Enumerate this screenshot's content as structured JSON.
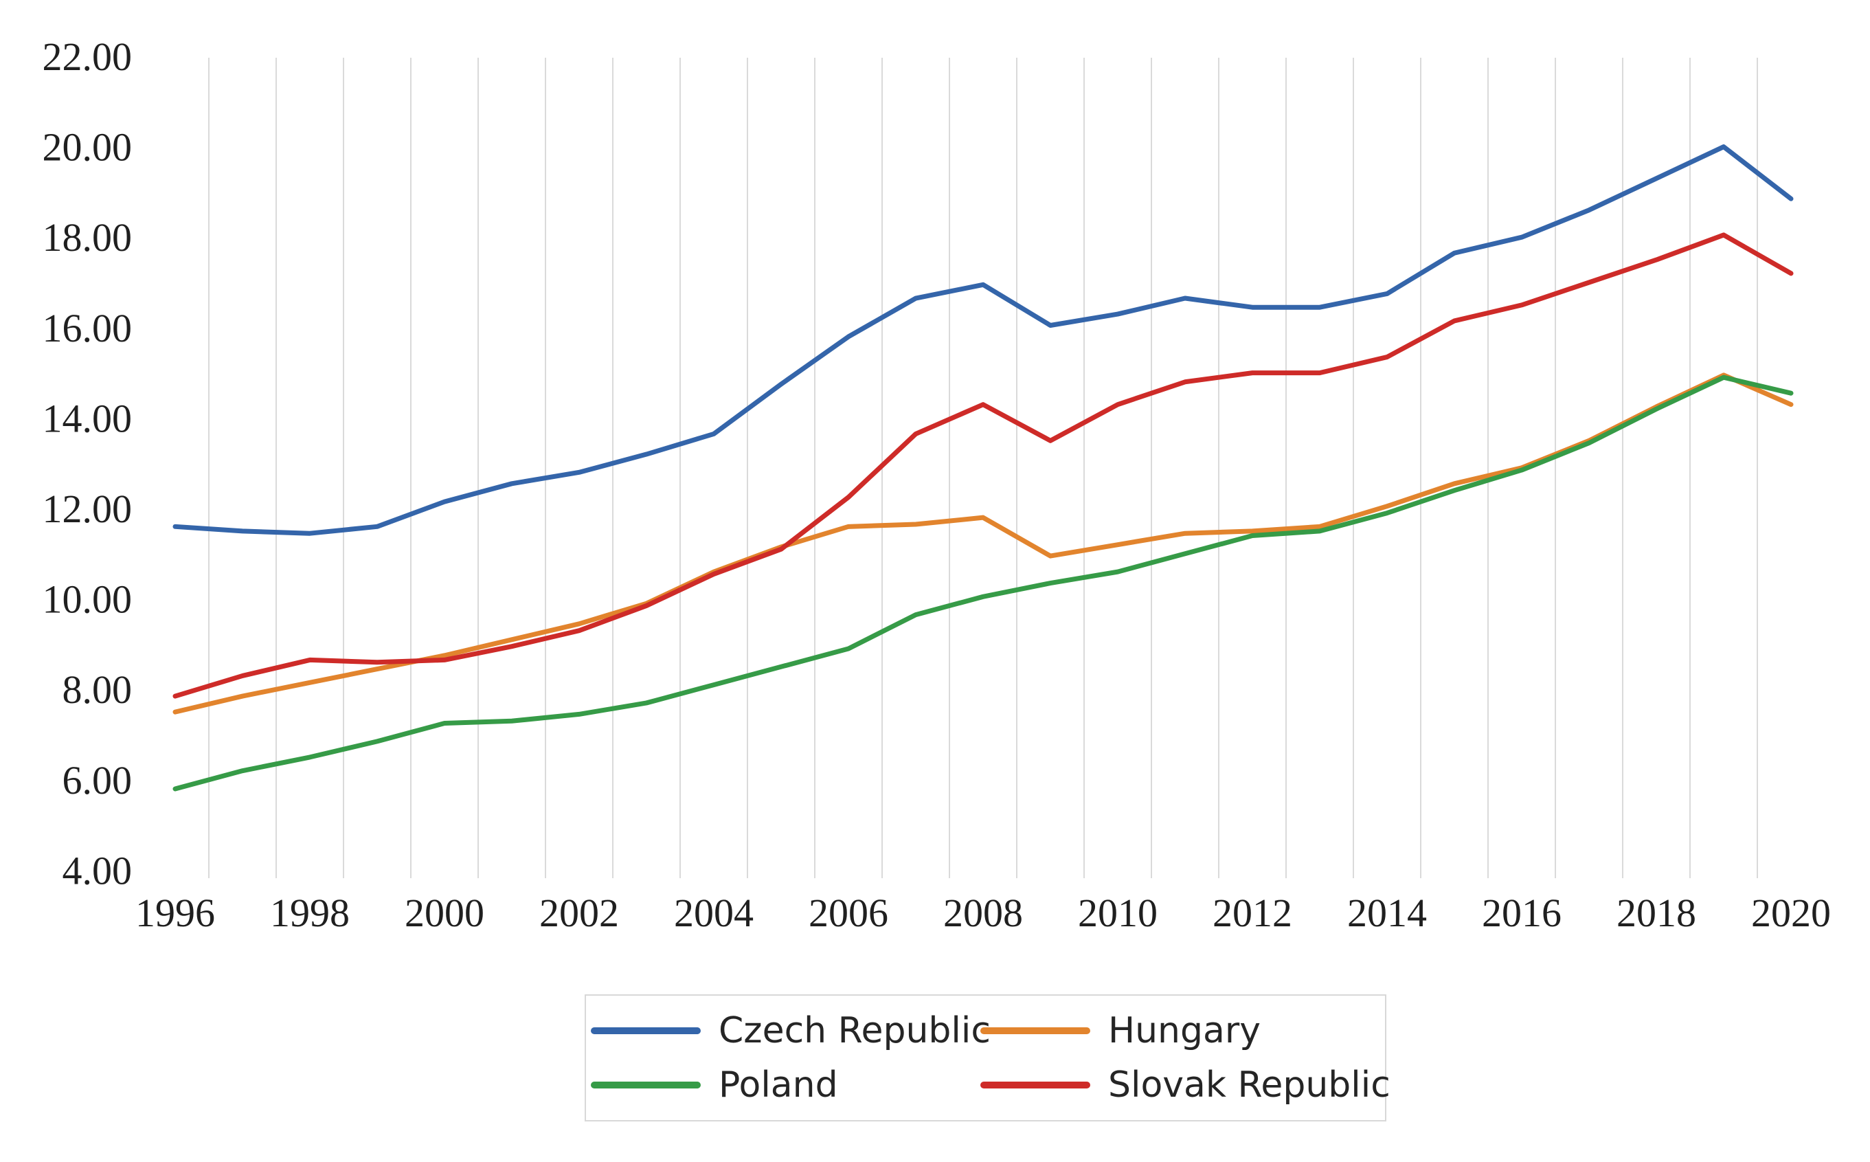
{
  "chart_data": {
    "type": "line",
    "title": "",
    "xlabel": "",
    "ylabel": "",
    "x": [
      1996,
      1997,
      1998,
      1999,
      2000,
      2001,
      2002,
      2003,
      2004,
      2005,
      2006,
      2007,
      2008,
      2009,
      2010,
      2011,
      2012,
      2013,
      2014,
      2015,
      2016,
      2017,
      2018,
      2019,
      2020
    ],
    "series": [
      {
        "name": "Czech Republic",
        "color": "#3465AA",
        "values": [
          11.6,
          11.5,
          11.45,
          11.6,
          12.15,
          12.55,
          12.8,
          13.2,
          13.65,
          14.75,
          15.8,
          16.65,
          16.95,
          16.05,
          16.3,
          16.65,
          16.45,
          16.45,
          16.75,
          17.65,
          18.0,
          18.6,
          19.3,
          20.0,
          18.85
        ]
      },
      {
        "name": "Hungary",
        "color": "#E2842D",
        "values": [
          7.5,
          7.85,
          8.15,
          8.45,
          8.75,
          9.1,
          9.45,
          9.9,
          10.6,
          11.15,
          11.6,
          11.65,
          11.8,
          10.95,
          11.2,
          11.45,
          11.5,
          11.6,
          12.05,
          12.55,
          12.9,
          13.5,
          14.25,
          14.95,
          14.3
        ]
      },
      {
        "name": "Poland",
        "color": "#369B47",
        "values": [
          5.8,
          6.2,
          6.5,
          6.85,
          7.25,
          7.3,
          7.45,
          7.7,
          8.1,
          8.5,
          8.9,
          9.65,
          10.05,
          10.35,
          10.6,
          11.0,
          11.4,
          11.5,
          11.9,
          12.4,
          12.85,
          13.45,
          14.2,
          14.9,
          14.55
        ]
      },
      {
        "name": "Slovak Republic",
        "color": "#CE2B28",
        "values": [
          7.85,
          8.3,
          8.65,
          8.6,
          8.65,
          8.95,
          9.3,
          9.85,
          10.55,
          11.1,
          12.25,
          13.65,
          14.3,
          13.5,
          14.3,
          14.8,
          15.0,
          15.0,
          15.35,
          16.15,
          16.5,
          17.0,
          17.5,
          18.05,
          17.2
        ]
      }
    ],
    "ylim": [
      4,
      22
    ],
    "ytick_step": 2,
    "grid": "vertical-between-categories",
    "legend_position": "bottom-center"
  },
  "y_axis": {
    "tick_values": [
      22,
      20,
      18,
      16,
      14,
      12,
      10,
      8,
      6,
      4
    ],
    "tick_labels": [
      "22.00",
      "20.00",
      "18.00",
      "16.00",
      "14.00",
      "12.00",
      "10.00",
      "8.00",
      "6.00",
      "4.00"
    ]
  },
  "x_axis": {
    "tick_values": [
      1996,
      1998,
      2000,
      2002,
      2004,
      2006,
      2008,
      2010,
      2012,
      2014,
      2016,
      2018,
      2020
    ],
    "tick_labels": [
      "1996",
      "1998",
      "2000",
      "2002",
      "2004",
      "2006",
      "2008",
      "2010",
      "2012",
      "2014",
      "2016",
      "2018",
      "2020"
    ]
  },
  "style": {
    "gridline_color": "#DADADA",
    "axis_text_color": "#1f1f1f",
    "legend_border_color": "#d8d8d8",
    "background_color": "#ffffff",
    "line_width": 7
  },
  "legend": {
    "items": [
      "Czech Republic",
      "Hungary",
      "Poland",
      "Slovak Republic"
    ]
  }
}
